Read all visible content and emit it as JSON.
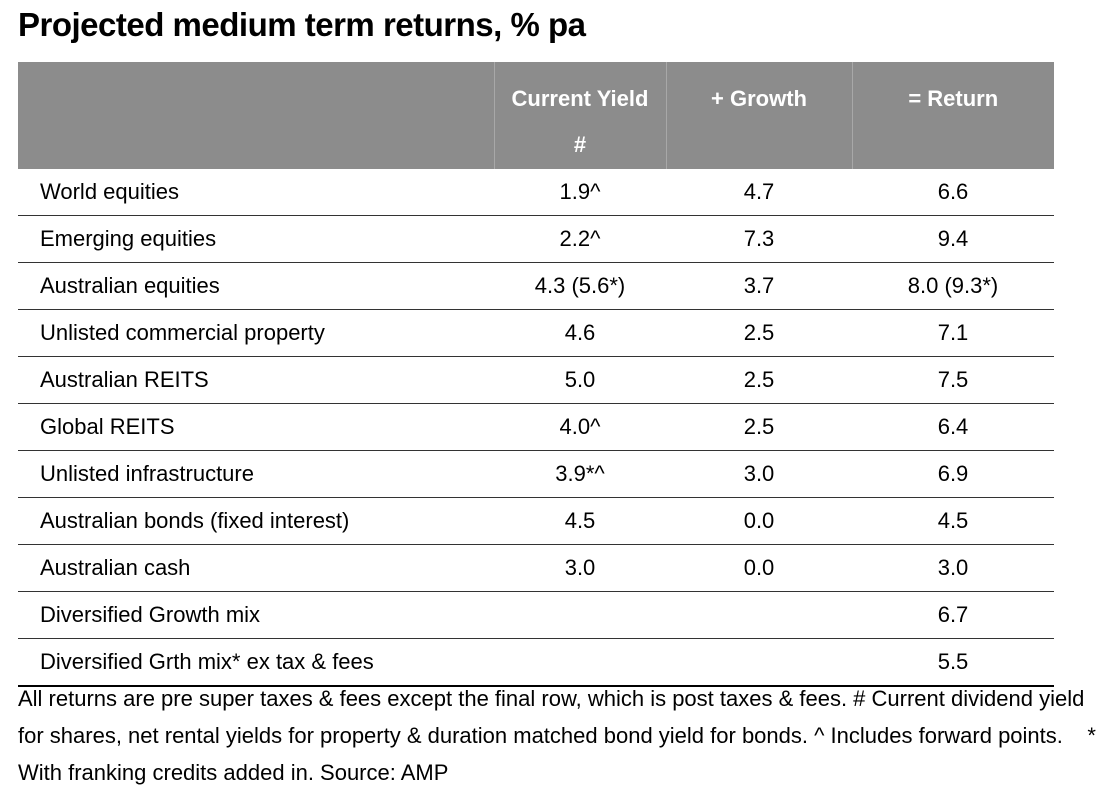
{
  "title": "Projected medium term returns, % pa",
  "table": {
    "header": [
      "",
      "Current Yield #",
      "+ Growth",
      "= Return"
    ],
    "rows": [
      {
        "label": "World equities",
        "yield": "1.9^",
        "growth": "4.7",
        "return": "6.6"
      },
      {
        "label": "Emerging equities",
        "yield": "2.2^",
        "growth": "7.3",
        "return": "9.4"
      },
      {
        "label": "Australian equities",
        "yield": "4.3 (5.6*)",
        "growth": "3.7",
        "return": "8.0 (9.3*)"
      },
      {
        "label": "Unlisted commercial property",
        "yield": "4.6",
        "growth": "2.5",
        "return": "7.1"
      },
      {
        "label": "Australian REITS",
        "yield": "5.0",
        "growth": "2.5",
        "return": "7.5"
      },
      {
        "label": "Global REITS",
        "yield": "4.0^",
        "growth": "2.5",
        "return": "6.4"
      },
      {
        "label": "Unlisted infrastructure",
        "yield": "3.9*^",
        "growth": "3.0",
        "return": "6.9"
      },
      {
        "label": "Australian bonds (fixed interest)",
        "yield": "4.5",
        "growth": "0.0",
        "return": "4.5"
      },
      {
        "label": "Australian cash",
        "yield": "3.0",
        "growth": "0.0",
        "return": "3.0"
      },
      {
        "label": "Diversified Growth mix",
        "return": "6.7"
      },
      {
        "label": "Diversified Grth mix* ex tax & fees",
        "return": "5.5"
      }
    ]
  },
  "footnote": "All returns are pre super taxes & fees except the final row, which is post taxes & fees. # Current dividend yield for shares, net rental yields for property & duration matched bond yield for bonds. ^ Includes forward points.    * With franking credits added in. Source: AMP"
}
